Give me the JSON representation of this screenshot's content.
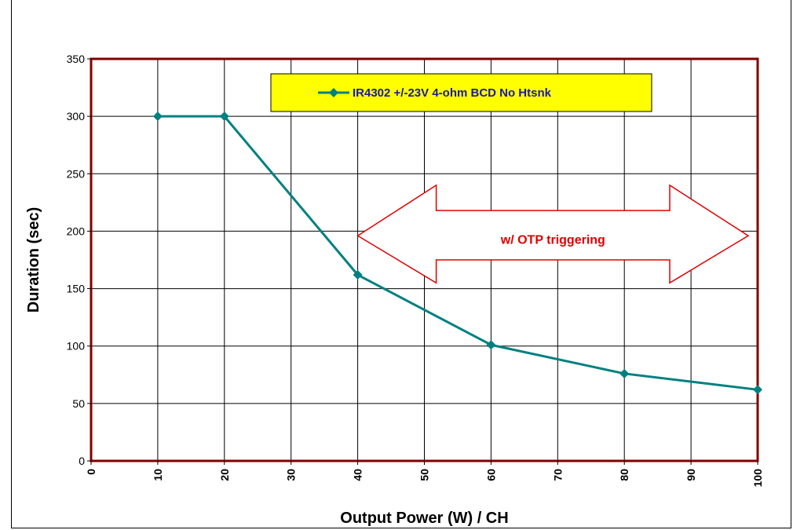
{
  "chart_data": {
    "type": "line",
    "title": "",
    "xlabel": "Output Power (W) / CH",
    "ylabel": "Duration (sec)",
    "xlim": [
      0,
      100
    ],
    "ylim": [
      0,
      350
    ],
    "x_ticks": [
      0,
      10,
      20,
      30,
      40,
      50,
      60,
      70,
      80,
      90,
      100
    ],
    "y_ticks": [
      0,
      50,
      100,
      150,
      200,
      250,
      300,
      350
    ],
    "grid": true,
    "legend_position": "top-center",
    "series": [
      {
        "name": "IR4302 +/-23V  4-ohm BCD No Htsnk",
        "color": "#008080",
        "marker": "diamond",
        "x": [
          10,
          20,
          40,
          60,
          80,
          100
        ],
        "y": [
          300,
          300,
          162,
          101,
          76,
          62
        ]
      }
    ],
    "annotations": [
      {
        "text": "w/ OTP triggering",
        "shape": "double-arrow",
        "x_range": [
          40,
          100
        ],
        "color": "#e00000"
      }
    ]
  },
  "colors": {
    "plot_border": "#800000",
    "legend_fill": "#ffff00",
    "grid": "#000000",
    "annotation": "#e00000"
  }
}
